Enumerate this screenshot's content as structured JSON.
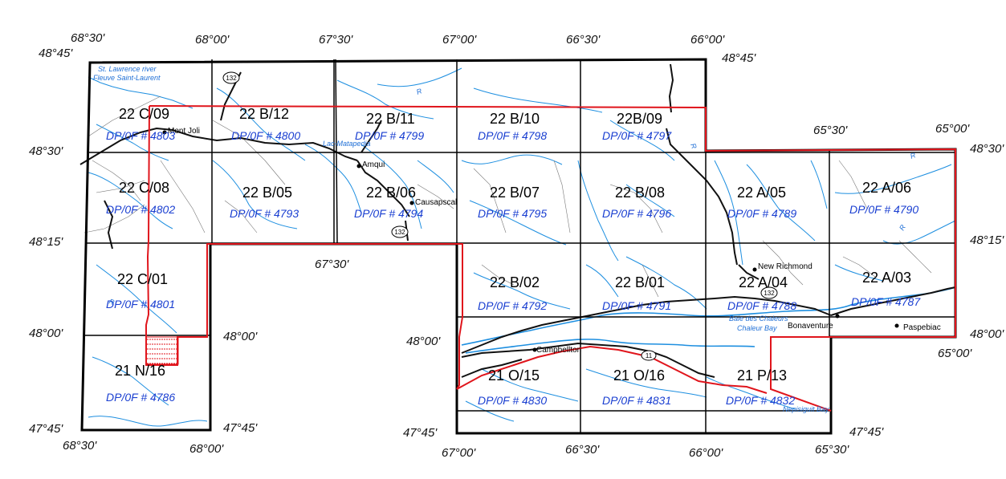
{
  "coordinate_labels": [
    "68°30'",
    "48°45'",
    "68°00'",
    "67°30'",
    "67°00'",
    "66°30'",
    "66°00'",
    "48°45'",
    "48°30'",
    "65°30'",
    "65°00'",
    "48°30'",
    "48°15'",
    "48°15'",
    "67°30'",
    "48°00'",
    "48°00'",
    "48°00'",
    "48°00'",
    "65°00'",
    "47°45'",
    "47°45'",
    "68°30'",
    "68°00'",
    "47°45'",
    "67°00'",
    "66°30'",
    "66°00'",
    "47°45'",
    "65°30'"
  ],
  "sheets": [
    {
      "id": "22 C/09",
      "dp": "DP/0F # 4803"
    },
    {
      "id": "22 B/12",
      "dp": "DP/0F # 4800"
    },
    {
      "id": "22 B/11",
      "dp": "DP/0F # 4799"
    },
    {
      "id": "22 B/10",
      "dp": "DP/0F # 4798"
    },
    {
      "id": "22B/09",
      "dp": "DP/0F # 4797"
    },
    {
      "id": "22 C/08",
      "dp": "DP/0F # 4802"
    },
    {
      "id": "22 B/05",
      "dp": "DP/0F # 4793"
    },
    {
      "id": "22 B/06",
      "dp": "DP/0F # 4794"
    },
    {
      "id": "22 B/07",
      "dp": "DP/0F # 4795"
    },
    {
      "id": "22 B/08",
      "dp": "DP/0F # 4796"
    },
    {
      "id": "22 A/05",
      "dp": "DP/0F # 4789"
    },
    {
      "id": "22 A/06",
      "dp": "DP/0F # 4790"
    },
    {
      "id": "22 C/01",
      "dp": "DP/0F # 4801"
    },
    {
      "id": "22 B/02",
      "dp": "DP/0F # 4792"
    },
    {
      "id": "22 B/01",
      "dp": "DP/0F # 4791"
    },
    {
      "id": "22 A/04",
      "dp": "DP/0F # 4788"
    },
    {
      "id": "22 A/03",
      "dp": "DP/0F # 4787"
    },
    {
      "id": "21 N/16",
      "dp": "DP/0F # 4786"
    },
    {
      "id": "21 O/15",
      "dp": "DP/0F # 4830"
    },
    {
      "id": "21 O/16",
      "dp": "DP/0F # 4831"
    },
    {
      "id": "21 P/13",
      "dp": "DP/0F # 4832"
    }
  ],
  "places": [
    "Mont Joli",
    "Amqui",
    "Causapscal",
    "New Richmond",
    "Bonaventure",
    "Paspebiac",
    "Campbellton"
  ],
  "water_labels": [
    "St. Lawrence river",
    "Fleuve Saint-Laurent",
    "Lac-Matapedia",
    "Baie des Chaleurs",
    "Chaleur Bay",
    "Nepisiguit Bay"
  ],
  "route_labels": [
    "132",
    "132",
    "132",
    "11"
  ],
  "colors": {
    "grid": "#000000",
    "boundary": "#e0151c",
    "rivers": "#1e8fe0",
    "roads": "#111111",
    "minor_roads": "#777777",
    "dp_text": "#1a3fd1",
    "hatch": "#e0151c"
  }
}
